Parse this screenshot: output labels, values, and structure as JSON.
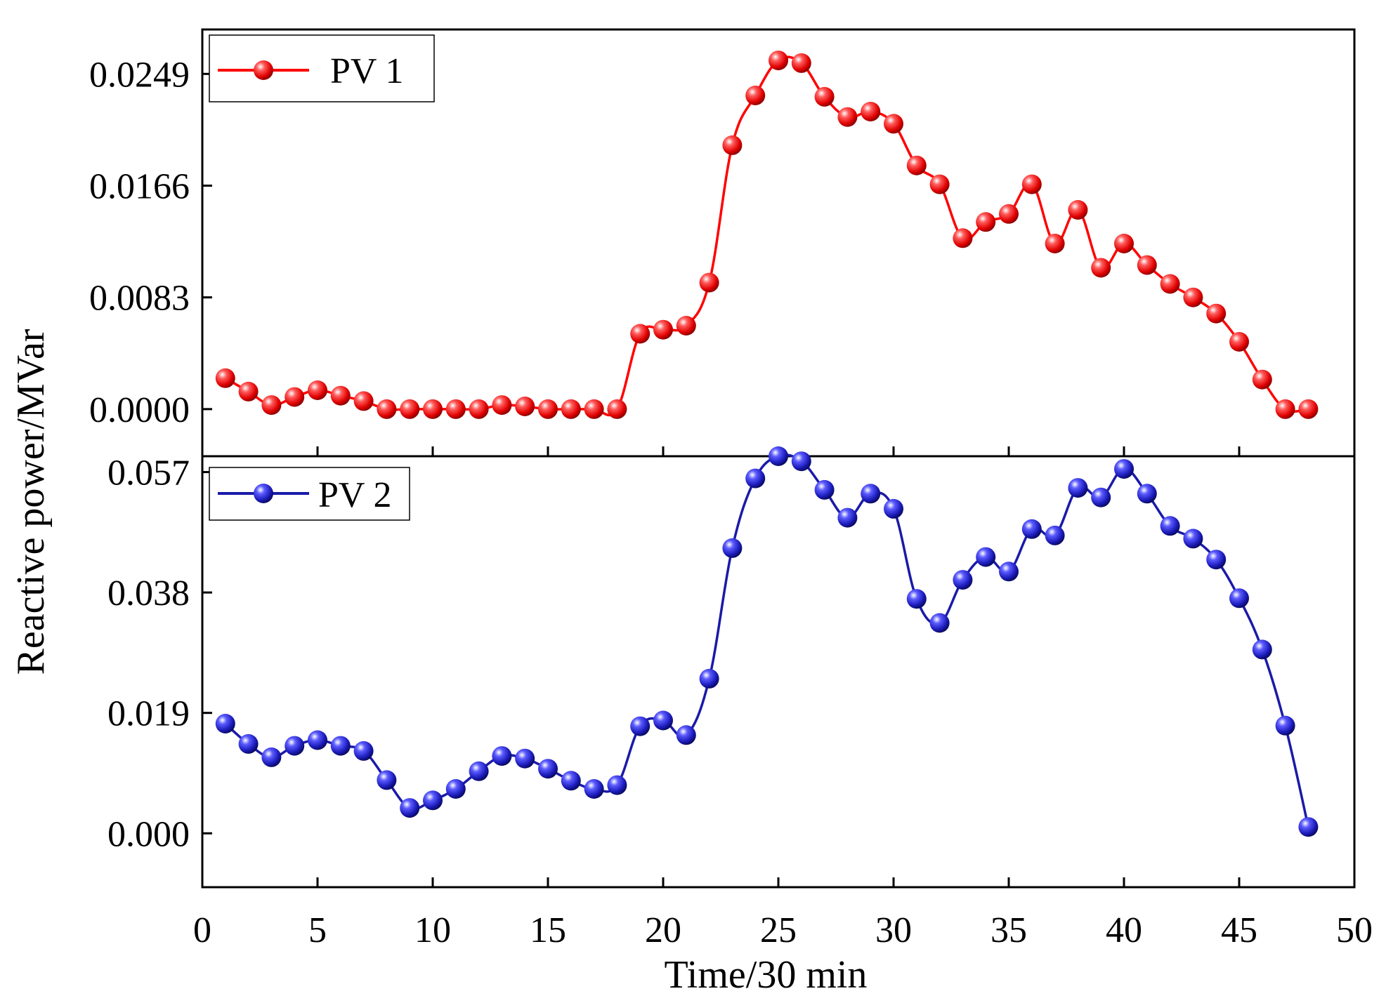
{
  "chart_data": {
    "type": "line",
    "ylabel": "Reactive power/MVar",
    "xlabel": "Time/30 min",
    "xlim": [
      0,
      50
    ],
    "x_ticks": [
      "0",
      "5",
      "10",
      "15",
      "20",
      "25",
      "30",
      "35",
      "40",
      "45",
      "50"
    ],
    "panels": [
      {
        "name": "PV 1",
        "color": "#ff0000",
        "marker_dark": "#8b0000",
        "ylim": [
          -0.0035,
          0.0282
        ],
        "y_ticks": [
          "0.0000",
          "0.0083",
          "0.0166",
          "0.0249"
        ],
        "y_tick_values": [
          0,
          0.0083,
          0.0166,
          0.0249
        ],
        "x": [
          1,
          2,
          3,
          4,
          5,
          6,
          7,
          8,
          9,
          10,
          11,
          12,
          13,
          14,
          15,
          16,
          17,
          18,
          19,
          20,
          21,
          22,
          23,
          24,
          25,
          26,
          27,
          28,
          29,
          30,
          31,
          32,
          33,
          34,
          35,
          36,
          37,
          38,
          39,
          40,
          41,
          42,
          43,
          44,
          45,
          46,
          47,
          48
        ],
        "values": [
          0.0023,
          0.0013,
          0.0003,
          0.0009,
          0.0014,
          0.001,
          0.0006,
          0.0,
          0.0,
          0.0,
          0.0,
          0.0,
          0.0003,
          0.0002,
          0.0,
          0.0,
          0.0,
          0.0,
          0.0056,
          0.0059,
          0.0062,
          0.0094,
          0.0196,
          0.0233,
          0.0259,
          0.0257,
          0.0232,
          0.0217,
          0.0221,
          0.0212,
          0.0181,
          0.0167,
          0.0127,
          0.0139,
          0.0145,
          0.0167,
          0.0123,
          0.0148,
          0.0105,
          0.0123,
          0.0107,
          0.0093,
          0.0083,
          0.0071,
          0.005,
          0.0022,
          0.0,
          0.0
        ]
      },
      {
        "name": "PV 2",
        "color": "#1a1aa8",
        "marker_dark": "#0a0a60",
        "ylim": [
          -0.0085,
          0.0595
        ],
        "y_ticks": [
          "0.000",
          "0.019",
          "0.038",
          "0.057"
        ],
        "y_tick_values": [
          0,
          0.019,
          0.038,
          0.057
        ],
        "x": [
          1,
          2,
          3,
          4,
          5,
          6,
          7,
          8,
          9,
          10,
          11,
          12,
          13,
          14,
          15,
          16,
          17,
          18,
          19,
          20,
          21,
          22,
          23,
          24,
          25,
          26,
          27,
          28,
          29,
          30,
          31,
          32,
          33,
          34,
          35,
          36,
          37,
          38,
          39,
          40,
          41,
          42,
          43,
          44,
          45,
          46,
          47,
          48
        ],
        "values": [
          0.0173,
          0.0141,
          0.012,
          0.0138,
          0.0147,
          0.0138,
          0.013,
          0.0084,
          0.004,
          0.0052,
          0.007,
          0.0098,
          0.0122,
          0.0118,
          0.0102,
          0.0083,
          0.007,
          0.0076,
          0.0169,
          0.0178,
          0.0155,
          0.0244,
          0.045,
          0.056,
          0.0595,
          0.0587,
          0.0542,
          0.0498,
          0.0536,
          0.0512,
          0.037,
          0.0332,
          0.04,
          0.0436,
          0.0413,
          0.048,
          0.047,
          0.0545,
          0.053,
          0.0575,
          0.0536,
          0.0485,
          0.0465,
          0.0432,
          0.0371,
          0.029,
          0.017,
          0.001
        ]
      }
    ]
  }
}
